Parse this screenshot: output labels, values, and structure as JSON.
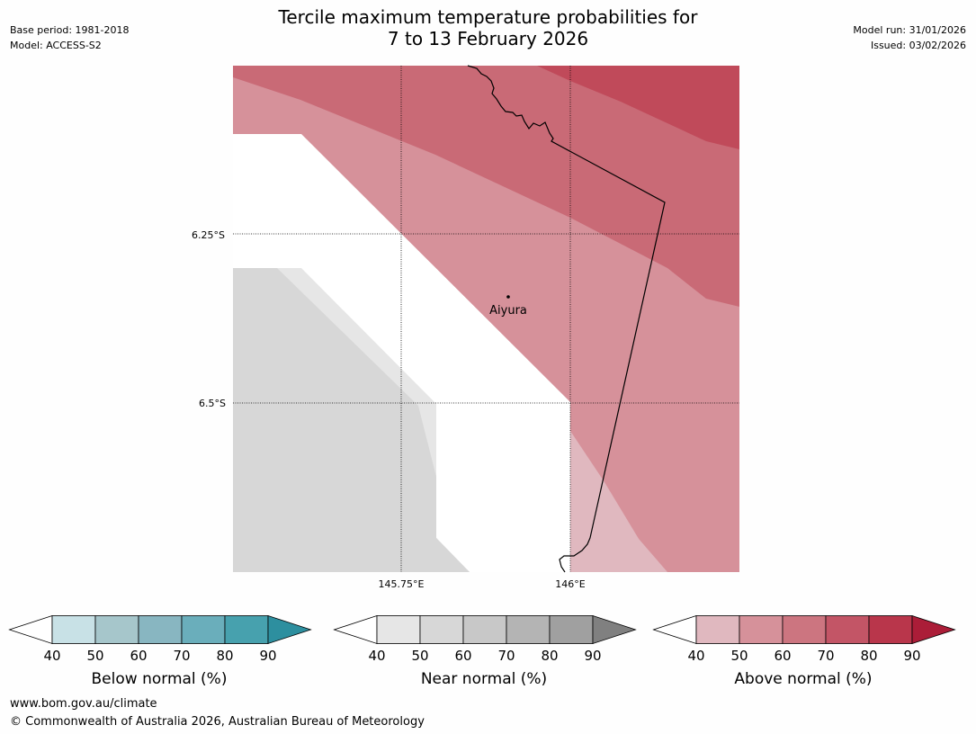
{
  "header": {
    "base_period": "Base period: 1981-2018",
    "model": "Model: ACCESS-S2",
    "model_run": "Model run: 31/01/2026",
    "issued": "Issued: 03/02/2026"
  },
  "title": {
    "line1": "Tercile maximum temperature probabilities for",
    "line2": "7 to 13 February 2026"
  },
  "map": {
    "latitude_labels": [
      "6.25°S",
      "6.5°S"
    ],
    "longitude_labels": [
      "145.75°E",
      "146°E"
    ],
    "place": {
      "name": "Aiyura"
    },
    "colors": {
      "above_50_60": "#d6919a",
      "above_60_70": "#c96a76",
      "above_70_80": "#c04a5a",
      "above_40_50": "#e0b8bf",
      "near_50_60": "#d7d7d7",
      "near_40_50": "#e6e6e6",
      "border": "#000000"
    }
  },
  "legends": [
    {
      "id": "below",
      "title": "Below normal (%)",
      "ticks": [
        "40",
        "50",
        "60",
        "70",
        "80",
        "90"
      ],
      "colors": [
        "#c8e1e6",
        "#a6c6cb",
        "#88b6c1",
        "#6aaebb",
        "#47a1ae",
        "#2d8f9f"
      ]
    },
    {
      "id": "near",
      "title": "Near normal (%)",
      "ticks": [
        "40",
        "50",
        "60",
        "70",
        "80",
        "90"
      ],
      "colors": [
        "#e6e6e6",
        "#d7d7d7",
        "#c8c8c8",
        "#b4b4b4",
        "#a0a0a0",
        "#808080"
      ]
    },
    {
      "id": "above",
      "title": "Above normal (%)",
      "ticks": [
        "40",
        "50",
        "60",
        "70",
        "80",
        "90"
      ],
      "colors": [
        "#e0b8bf",
        "#d6919a",
        "#cc7580",
        "#c35566",
        "#b9364b",
        "#ab1d38"
      ]
    }
  ],
  "footer": {
    "url": "www.bom.gov.au/climate",
    "copyright": "© Commonwealth of Australia 2026, Australian Bureau of Meteorology"
  }
}
